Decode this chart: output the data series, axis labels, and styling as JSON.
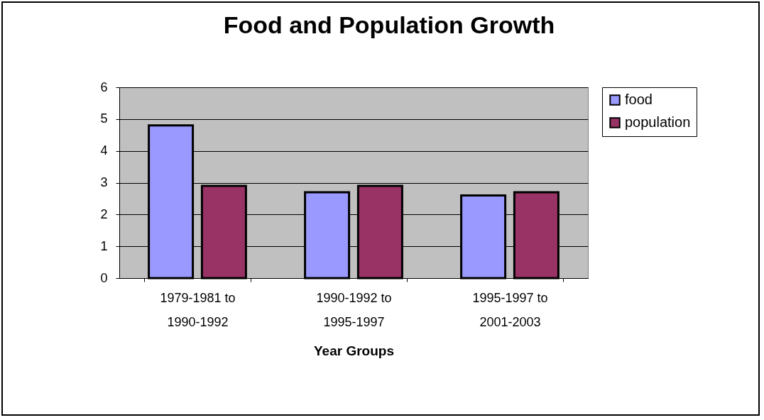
{
  "chart_data": {
    "type": "bar",
    "title": "Food and Population Growth",
    "xlabel": "Year Groups",
    "categories": [
      "1979-1981 to\n1990-1992",
      "1990-1992 to\n1995-1997",
      "1995-1997 to\n2001-2003"
    ],
    "series": [
      {
        "name": "food",
        "color": "#9999ff",
        "values": [
          4.8,
          2.7,
          2.6
        ]
      },
      {
        "name": "population",
        "color": "#993366",
        "values": [
          2.9,
          2.9,
          2.7
        ]
      }
    ],
    "ylim": [
      0,
      6
    ],
    "yticks": [
      0,
      1,
      2,
      3,
      4,
      5,
      6
    ],
    "grid": "y",
    "legend": "right"
  }
}
